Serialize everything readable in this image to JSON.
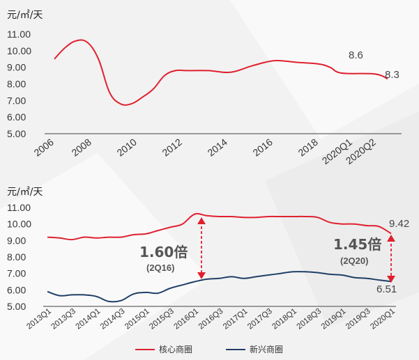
{
  "colors": {
    "core": "#e0202f",
    "emerging": "#1f3f66",
    "axis": "#666666"
  },
  "chart_data": [
    {
      "type": "line",
      "unit_label": "元/㎡/天",
      "ylim": [
        5,
        11
      ],
      "y_ticks": [
        "5.00",
        "6.00",
        "7.00",
        "8.00",
        "9.00",
        "10.00",
        "11.00"
      ],
      "x_ticks": [
        "2006",
        "2008",
        "2010",
        "2012",
        "2014",
        "2016",
        "2018",
        "2020Q1",
        "2020Q2"
      ],
      "series": [
        {
          "x": [
            2006,
            2006.5,
            2007,
            2007.5,
            2008,
            2008.5,
            2009,
            2009.5,
            2010,
            2010.5,
            2011,
            2011.5,
            2012,
            2013,
            2014,
            2015,
            2016,
            2017,
            2018,
            2018.5,
            2019,
            2020.3,
            2020.8
          ],
          "values": [
            9.5,
            10.2,
            10.6,
            10.5,
            9.5,
            7.5,
            6.8,
            6.8,
            7.2,
            7.7,
            8.5,
            8.8,
            8.8,
            8.8,
            8.7,
            9.1,
            9.4,
            9.3,
            9.2,
            9.0,
            8.65,
            8.6,
            8.3
          ]
        }
      ],
      "annotations": [
        {
          "text": "8.6"
        },
        {
          "text": "8.3"
        }
      ]
    },
    {
      "type": "line",
      "unit_label": "元/㎡/天",
      "ylim": [
        5,
        11
      ],
      "y_ticks": [
        "5.00",
        "6.00",
        "7.00",
        "8.00",
        "9.00",
        "10.00",
        "11.00"
      ],
      "x_ticks": [
        "2013Q1",
        "2013Q3",
        "2014Q1",
        "2014Q3",
        "2015Q1",
        "2015Q3",
        "2016Q1",
        "2016Q3",
        "2017Q1",
        "2017Q3",
        "2018Q1",
        "2018Q3",
        "2019Q1",
        "2019Q3",
        "2020Q1"
      ],
      "series": [
        {
          "name": "核心商圈",
          "values": [
            9.2,
            9.15,
            9.05,
            9.2,
            9.15,
            9.2,
            9.2,
            9.35,
            9.4,
            9.6,
            9.8,
            10.0,
            10.6,
            10.5,
            10.45,
            10.45,
            10.4,
            10.4,
            10.45,
            10.45,
            10.45,
            10.45,
            10.4,
            10.1,
            10.0,
            10.0,
            9.9,
            9.85,
            9.42
          ]
        },
        {
          "name": "新兴商圈",
          "values": [
            5.9,
            5.65,
            5.7,
            5.7,
            5.6,
            5.3,
            5.35,
            5.75,
            5.85,
            5.8,
            6.1,
            6.3,
            6.5,
            6.65,
            6.7,
            6.8,
            6.7,
            6.8,
            6.9,
            7.0,
            7.1,
            7.1,
            7.05,
            6.95,
            6.9,
            6.75,
            6.7,
            6.6,
            6.51
          ]
        }
      ],
      "annotations": [
        {
          "text": "9.42"
        },
        {
          "text": "6.51"
        }
      ],
      "callouts": [
        {
          "ratio": "1.60倍",
          "sub": "(2Q16)"
        },
        {
          "ratio": "1.45倍",
          "sub": "(2Q20)"
        }
      ]
    }
  ]
}
